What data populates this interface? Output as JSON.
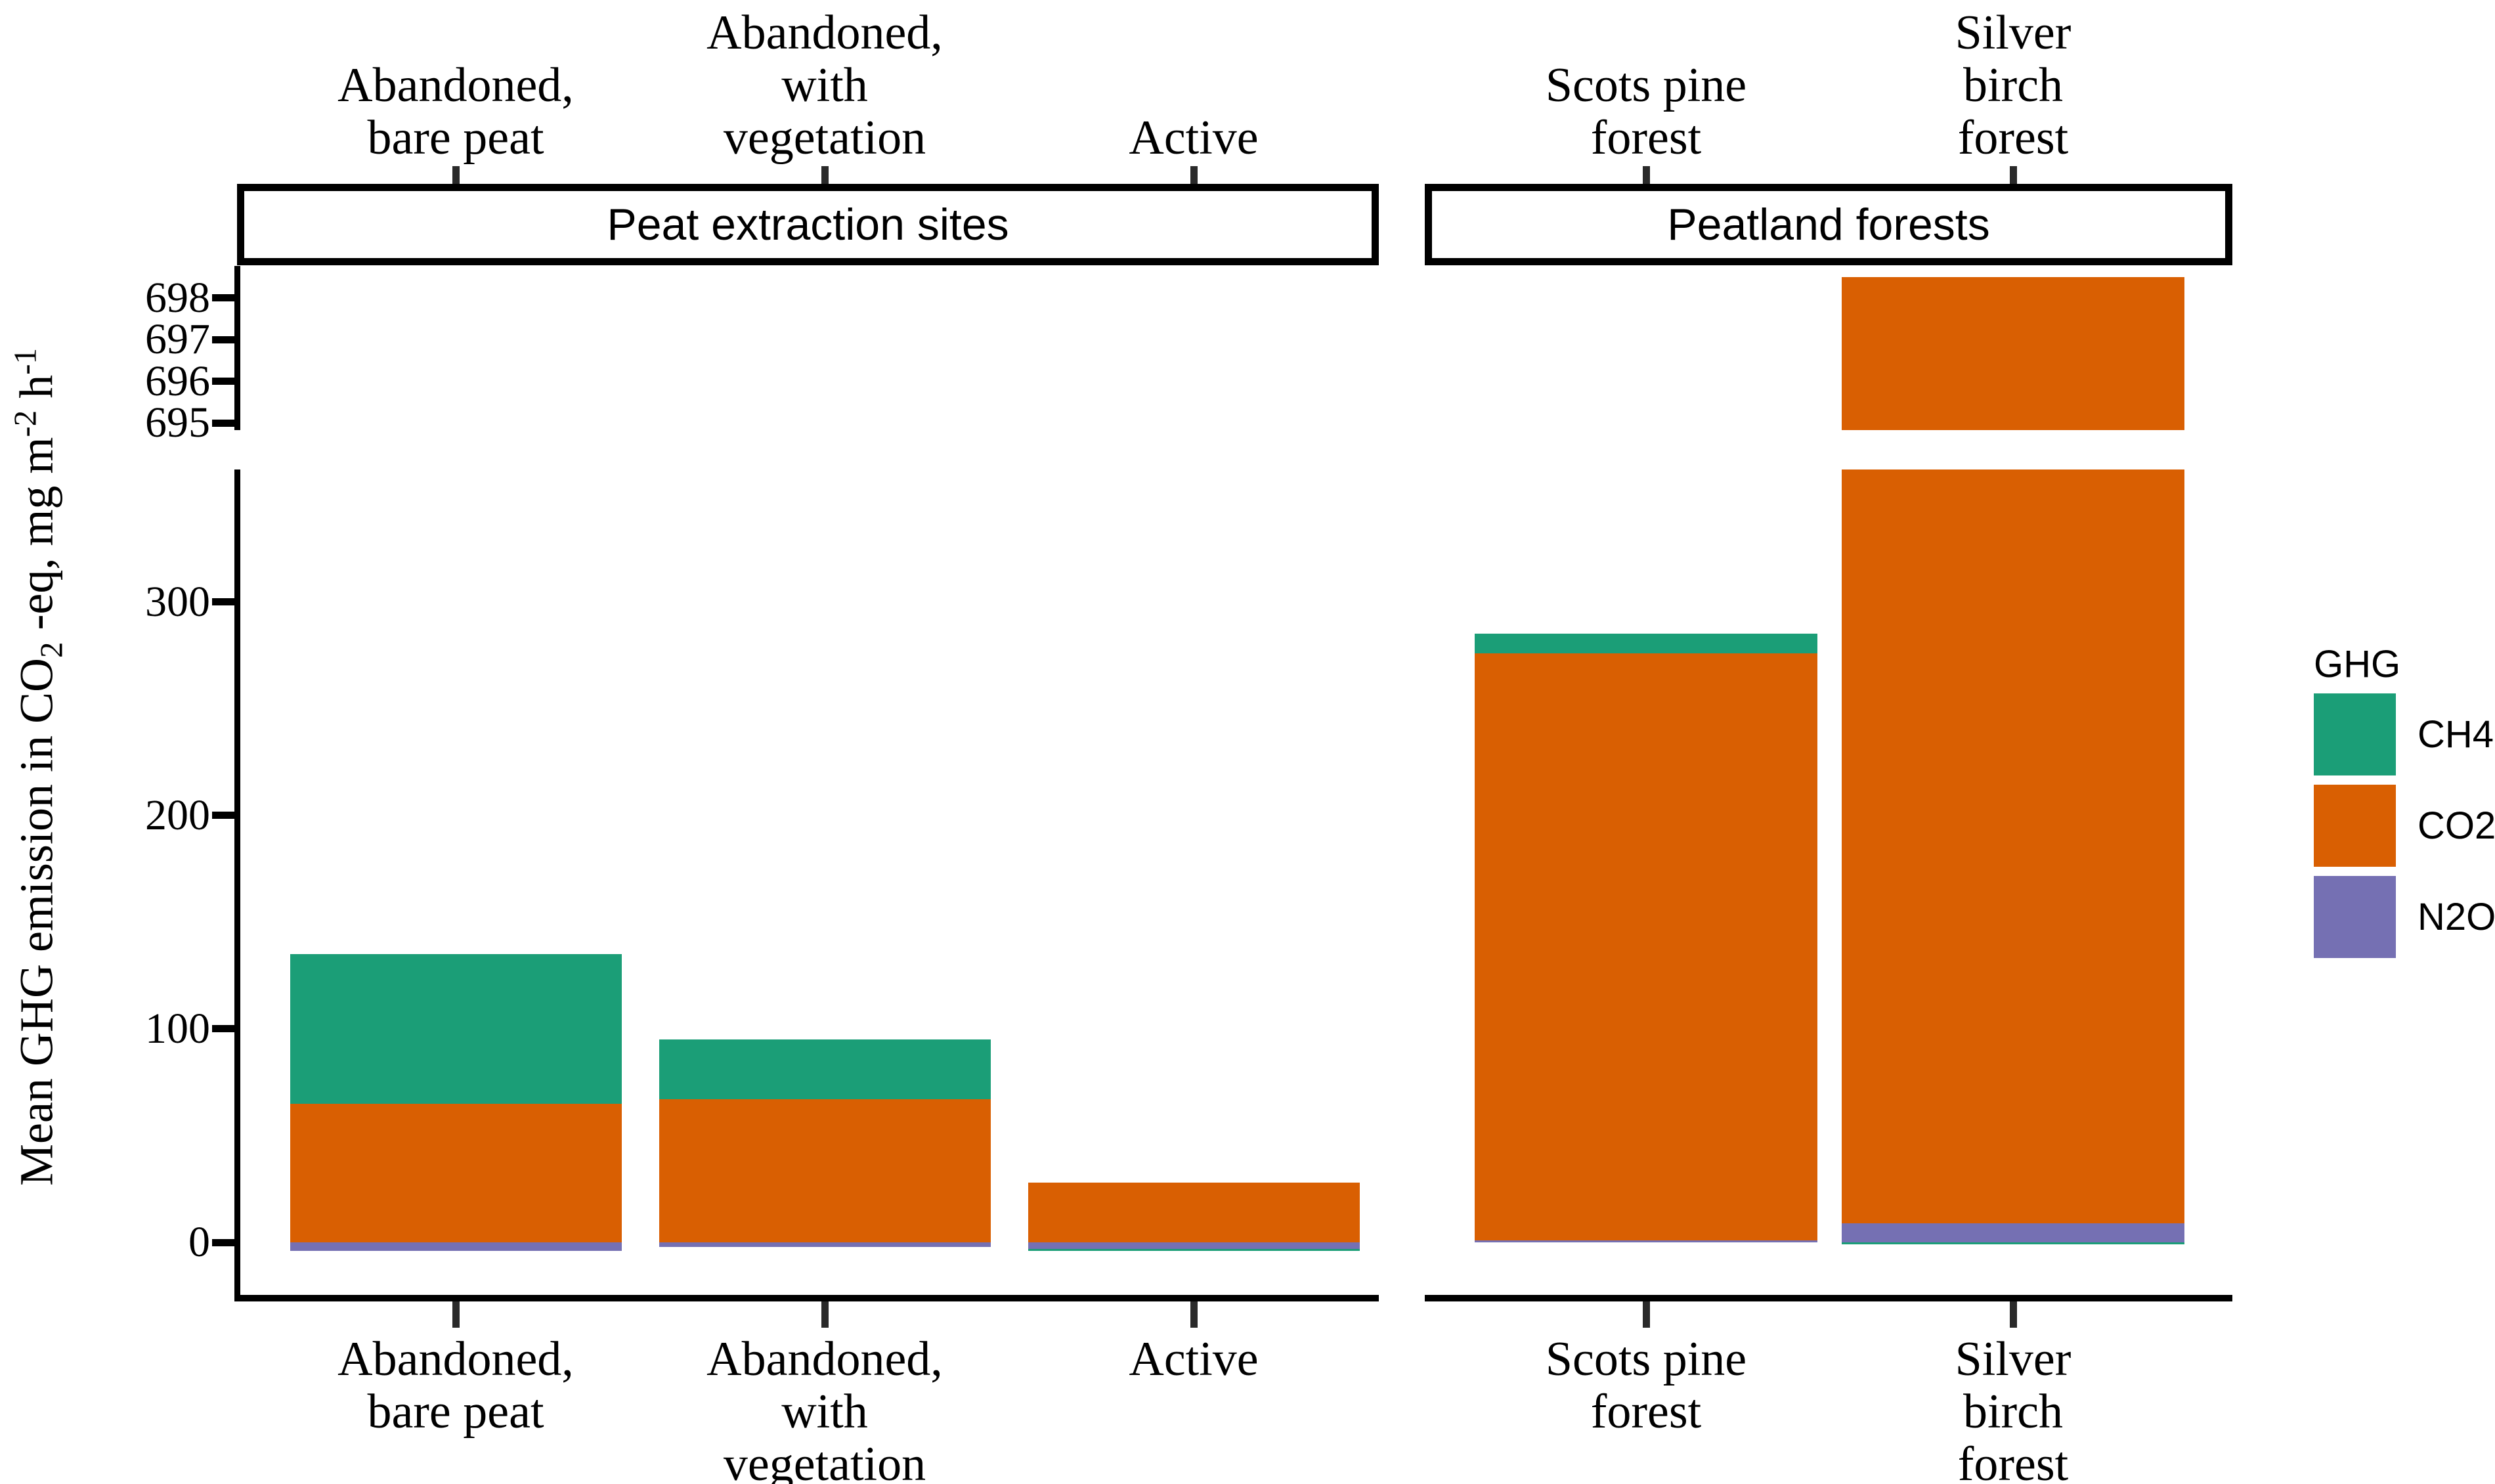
{
  "chart_data": {
    "type": "bar",
    "stacked": true,
    "broken_y_axis": true,
    "ylabel_parts": [
      {
        "text": "Mean GHG emission in CO"
      },
      {
        "sub": "2"
      },
      {
        "text": " -eq, mg m"
      },
      {
        "sup": "-2"
      },
      {
        "text": " h"
      },
      {
        "sup": "-1"
      }
    ],
    "ylabel_plain": "Mean GHG emission in CO2 -eq, mg m-2 h-1",
    "series_order_bottom_to_top": [
      "N2O",
      "CO2",
      "CH4"
    ],
    "colors": {
      "CH4": "#1B9E77",
      "CO2": "#D95F02",
      "N2O": "#7570B3"
    },
    "y_axis": {
      "main_panel": {
        "ticks": [
          0,
          100,
          200,
          300
        ],
        "range": [
          -24.6,
          362
        ]
      },
      "break_panel": {
        "ticks": [
          695,
          696,
          697,
          698
        ],
        "range": [
          694.83,
          698.77
        ]
      }
    },
    "facets": [
      {
        "title": "Peat extraction sites",
        "categories": [
          [
            "Abandoned,",
            "bare peat"
          ],
          [
            "Abandoned,",
            "with",
            "vegetation"
          ],
          [
            "Active"
          ]
        ],
        "series": [
          {
            "name": "CH4",
            "values": [
              70,
              28,
              -1
            ]
          },
          {
            "name": "CO2",
            "values": [
              65,
              67,
              28
            ]
          },
          {
            "name": "N2O",
            "values": [
              -4,
              -2,
              -3
            ]
          }
        ]
      },
      {
        "title": "Peatland forests",
        "categories": [
          [
            "Scots pine",
            "forest"
          ],
          [
            "Silver",
            "birch",
            "forest"
          ]
        ],
        "series": [
          {
            "name": "CH4",
            "values": [
              9,
              -1
            ]
          },
          {
            "name": "CO2",
            "values": [
              275,
              689.5
            ]
          },
          {
            "name": "N2O",
            "values": [
              1,
              9
            ]
          }
        ]
      }
    ],
    "legend": {
      "title": "GHG",
      "position": "right",
      "entries": [
        {
          "label": "CH4",
          "color": "#1B9E77"
        },
        {
          "label": "CO2",
          "color": "#D95F02"
        },
        {
          "label": "N2O",
          "color": "#7570B3"
        }
      ]
    }
  }
}
